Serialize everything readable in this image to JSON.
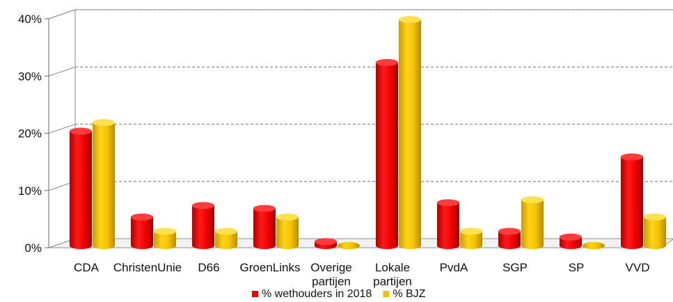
{
  "chart_data": {
    "type": "bar",
    "style": "3d-cylinder",
    "categories": [
      [
        "CDA"
      ],
      [
        "ChristenUnie"
      ],
      [
        "D66"
      ],
      [
        "GroenLinks"
      ],
      [
        "Overige",
        "partijen"
      ],
      [
        "Lokale",
        "partijen"
      ],
      [
        "PvdA"
      ],
      [
        "SGP"
      ],
      [
        "SP"
      ],
      [
        "VVD"
      ]
    ],
    "series": [
      {
        "name": "% wethouders in 2018",
        "color": "#E60000",
        "values": [
          20,
          5,
          7,
          6.5,
          0.7,
          32,
          7.5,
          2.5,
          1.5,
          15.5
        ]
      },
      {
        "name": "% BJZ",
        "color": "#F2C200",
        "values": [
          21.5,
          2.5,
          2.5,
          5,
          0,
          39.5,
          2.5,
          8,
          0,
          5
        ]
      }
    ],
    "yticks": [
      "0%",
      "10%",
      "20%",
      "30%",
      "40%"
    ],
    "ylim": [
      0,
      40
    ],
    "grid": true,
    "legend_position": "bottom"
  }
}
